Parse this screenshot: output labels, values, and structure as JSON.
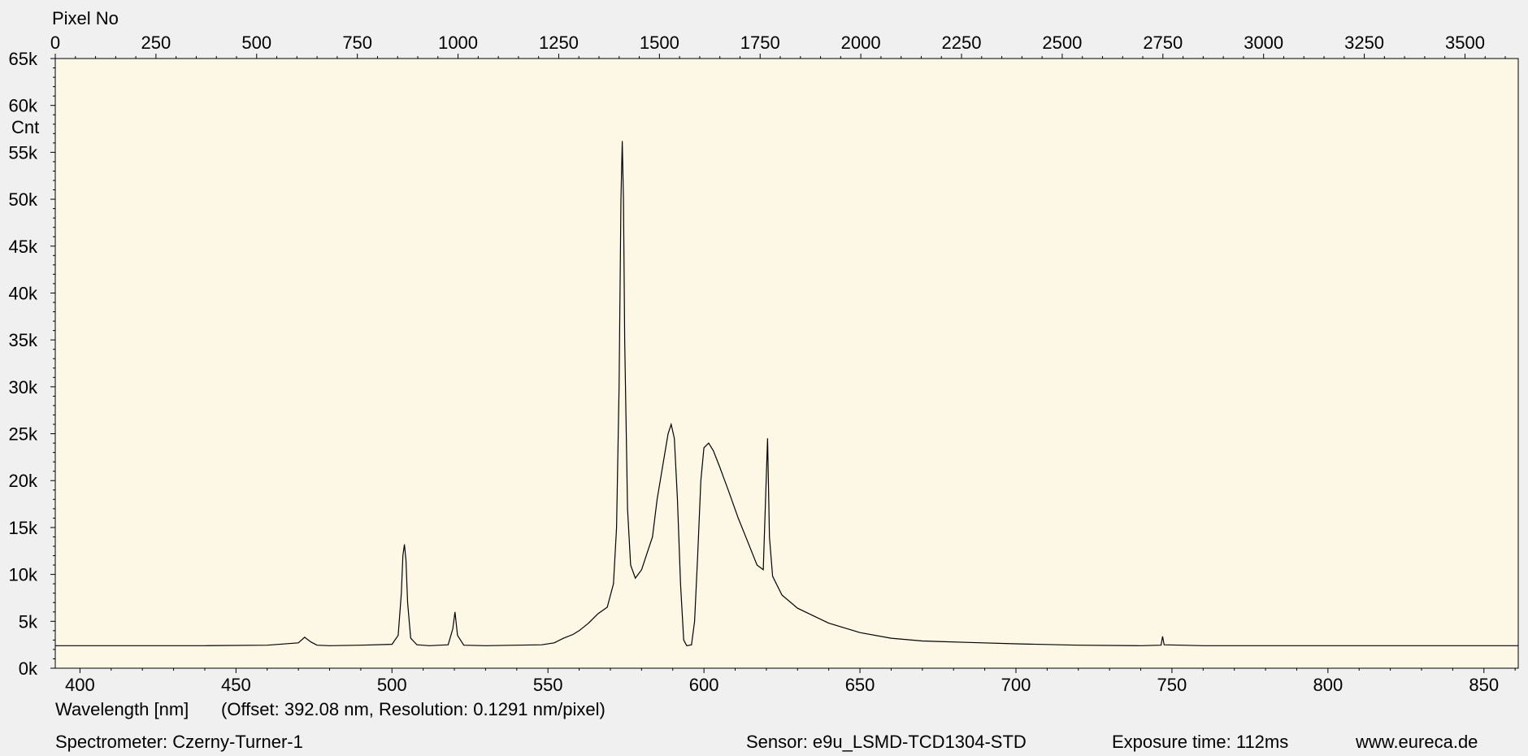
{
  "chart_data": {
    "type": "line",
    "title": "",
    "top_axis_label": "Pixel No",
    "y_unit_label": "Cnt",
    "xlabel": "Wavelength [nm]",
    "xlabel_note": "(Offset: 392.08 nm, Resolution: 0.1291 nm/pixel)",
    "x_range_nm": [
      392.08,
      861.0
    ],
    "ylim": [
      0,
      65000
    ],
    "grid": false,
    "top_ticks": [
      0,
      250,
      500,
      750,
      1000,
      1250,
      1500,
      1750,
      2000,
      2250,
      2500,
      2750,
      3000,
      3250,
      3500
    ],
    "top_tick_labels": [
      "0",
      "250",
      "500",
      "750",
      "1000",
      "1250",
      "1500",
      "1750",
      "2000",
      "2250",
      "2500",
      "2750",
      "3000",
      "3250",
      "3500"
    ],
    "x_ticks": [
      400,
      450,
      500,
      550,
      600,
      650,
      700,
      750,
      800,
      850
    ],
    "x_tick_labels": [
      "400",
      "450",
      "500",
      "550",
      "600",
      "650",
      "700",
      "750",
      "800",
      "850"
    ],
    "y_ticks": [
      0,
      5000,
      10000,
      15000,
      20000,
      25000,
      30000,
      35000,
      40000,
      45000,
      50000,
      55000,
      60000,
      65000
    ],
    "y_tick_labels": [
      "0k",
      "5k",
      "10k",
      "15k",
      "20k",
      "25k",
      "30k",
      "35k",
      "40k",
      "45k",
      "50k",
      "55k",
      "60k",
      "65k"
    ],
    "series": [
      {
        "x": [
          392.1,
          400,
          420,
          440,
          460,
          470,
          472,
          474,
          476,
          480,
          490,
          500,
          502,
          503,
          503.5,
          504,
          504.5,
          505,
          506,
          508,
          512,
          518,
          519.5,
          520.2,
          521,
          523,
          530,
          540,
          548,
          552,
          555,
          558,
          560,
          563,
          566,
          569,
          571,
          572,
          572.8,
          573.4,
          573.8,
          574.2,
          574.6,
          575.5,
          576.5,
          578,
          580,
          582,
          583.5,
          585,
          587,
          588.5,
          589.5,
          590.5,
          591.5,
          592.5,
          593.5,
          594.5,
          596,
          597,
          598,
          599,
          600,
          601.5,
          603,
          605,
          608,
          611,
          614,
          617,
          619,
          619.8,
          620.4,
          621,
          622,
          625,
          630,
          640,
          650,
          660,
          670,
          675,
          685,
          700,
          720,
          740,
          746.5,
          747,
          747.5,
          760,
          780,
          800,
          820,
          840,
          861
        ],
        "y": [
          2400,
          2400,
          2400,
          2400,
          2450,
          2700,
          3300,
          2800,
          2450,
          2400,
          2450,
          2550,
          3500,
          8000,
          12000,
          13200,
          11500,
          7000,
          3200,
          2500,
          2400,
          2500,
          4200,
          6000,
          3500,
          2450,
          2400,
          2450,
          2500,
          2700,
          3200,
          3600,
          4000,
          4800,
          5800,
          6500,
          9000,
          15000,
          30000,
          50000,
          56200,
          50000,
          35000,
          17000,
          11000,
          9600,
          10500,
          12500,
          14000,
          18000,
          22000,
          25000,
          26000,
          24500,
          18000,
          9000,
          3000,
          2400,
          2500,
          5000,
          12000,
          20000,
          23500,
          24000,
          23200,
          21500,
          18800,
          16000,
          13500,
          11000,
          10500,
          18500,
          24500,
          14000,
          9800,
          7800,
          6400,
          4800,
          3800,
          3200,
          2900,
          2850,
          2750,
          2600,
          2450,
          2400,
          2450,
          3400,
          2500,
          2400,
          2400,
          2400,
          2400,
          2400,
          2400
        ]
      }
    ],
    "colors": {
      "plot_bg": "#fdf8e6",
      "line": "#000000",
      "frame": "#000000",
      "window_bg": "#f0f0f0"
    }
  },
  "footer": {
    "spectrometer": "Spectrometer: Czerny-Turner-1",
    "sensor": "Sensor: e9u_LSMD-TCD1304-STD",
    "exposure": "Exposure time: 112ms",
    "website": "www.eureca.de"
  }
}
